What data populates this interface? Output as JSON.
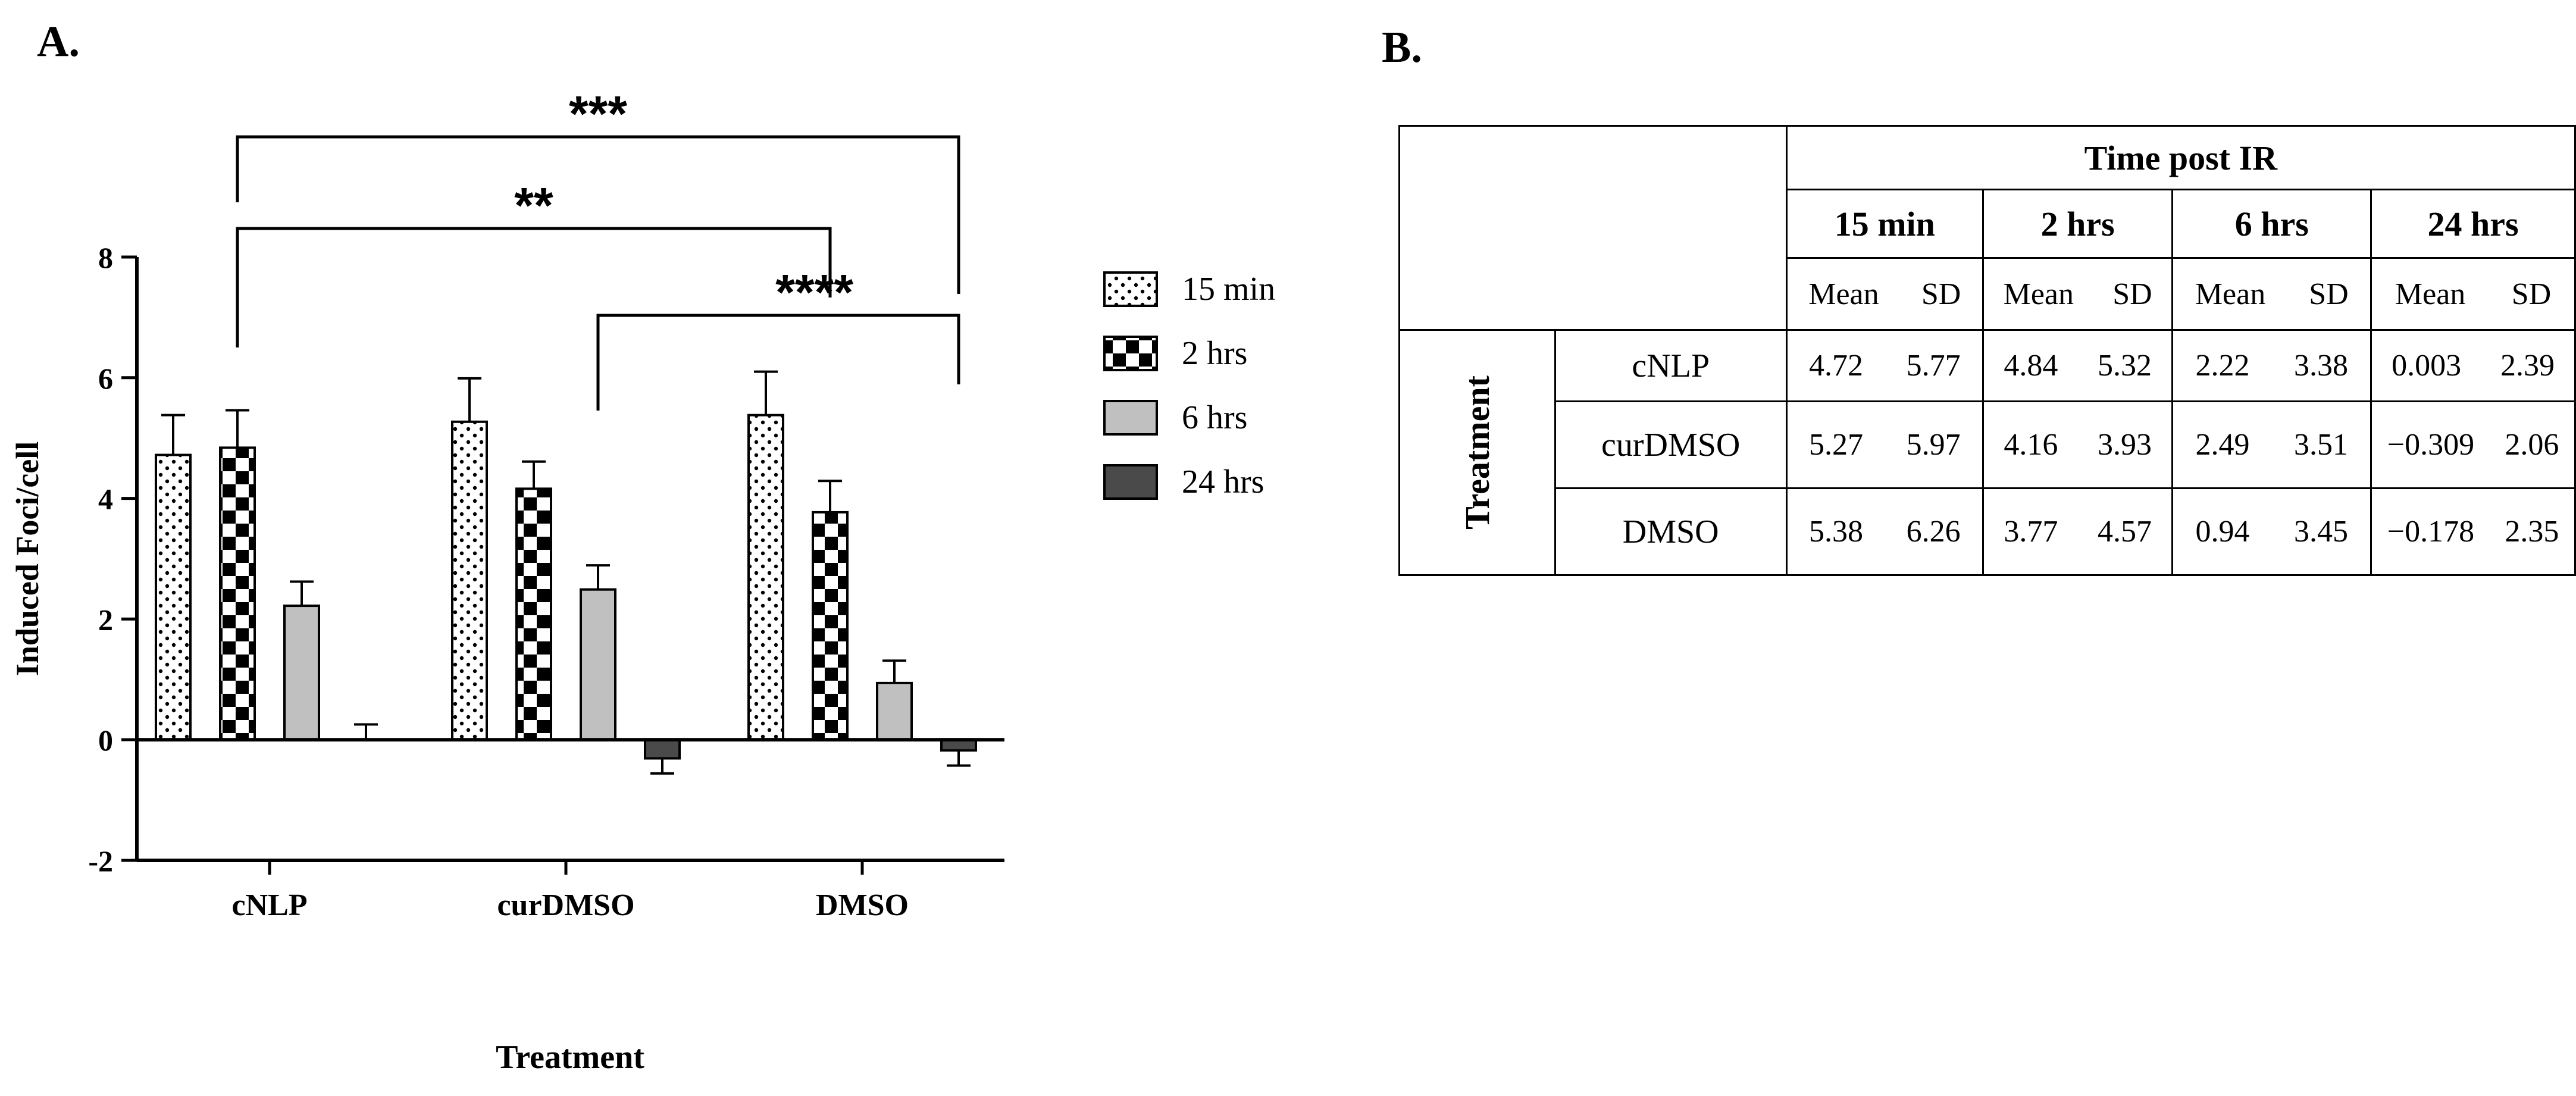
{
  "panel_a_label": "A.",
  "panel_b_label": "B.",
  "colors": {
    "axis": "#000000",
    "gray6": "#c0c0c0",
    "gray24": "#4a4a4a",
    "black": "#000000",
    "white": "#ffffff"
  },
  "chart_data": {
    "type": "bar",
    "ylabel": "Induced Foci/cell",
    "xlabel": "Treatment",
    "ylim": [
      -2,
      8
    ],
    "yticks": [
      "-2",
      "0",
      "2",
      "4",
      "6",
      "8"
    ],
    "categories": [
      "cNLP",
      "curDMSO",
      "DMSO"
    ],
    "series": [
      {
        "name": "15 min",
        "pattern": "dots",
        "values": [
          4.72,
          5.27,
          5.38
        ],
        "errors": [
          0.66,
          0.72,
          0.72
        ]
      },
      {
        "name": "2 hrs",
        "pattern": "checker",
        "values": [
          4.84,
          4.16,
          3.77
        ],
        "errors": [
          0.62,
          0.45,
          0.52
        ]
      },
      {
        "name": "6 hrs",
        "pattern": "light-gray",
        "values": [
          2.22,
          2.49,
          0.94
        ],
        "errors": [
          0.4,
          0.4,
          0.37
        ]
      },
      {
        "name": "24 hrs",
        "pattern": "dark-gray",
        "values": [
          0.003,
          -0.309,
          -0.178
        ],
        "errors": [
          0.25,
          0.25,
          0.25
        ]
      }
    ],
    "legend_position": "right",
    "significance": [
      {
        "label": "***",
        "from": "cNLP",
        "to": "DMSO"
      },
      {
        "label": "**",
        "from": "cNLP",
        "to": "DMSO"
      },
      {
        "label": "****",
        "from": "curDMSO",
        "to": "DMSO"
      }
    ]
  },
  "table": {
    "header": "Time post IR",
    "time_points": [
      "15 min",
      "2 hrs",
      "6 hrs",
      "24 hrs"
    ],
    "stat_labels": {
      "mean": "Mean",
      "sd": "SD"
    },
    "group_label": "Treatment",
    "rows": [
      {
        "name": "cNLP",
        "values": [
          [
            "4.72",
            "5.77"
          ],
          [
            "4.84",
            "5.32"
          ],
          [
            "2.22",
            "3.38"
          ],
          [
            "0.003",
            "2.39"
          ]
        ]
      },
      {
        "name": "curDMSO",
        "values": [
          [
            "5.27",
            "5.97"
          ],
          [
            "4.16",
            "3.93"
          ],
          [
            "2.49",
            "3.51"
          ],
          [
            "−0.309",
            "2.06"
          ]
        ]
      },
      {
        "name": "DMSO",
        "values": [
          [
            "5.38",
            "6.26"
          ],
          [
            "3.77",
            "4.57"
          ],
          [
            "0.94",
            "3.45"
          ],
          [
            "−0.178",
            "2.35"
          ]
        ]
      }
    ]
  }
}
